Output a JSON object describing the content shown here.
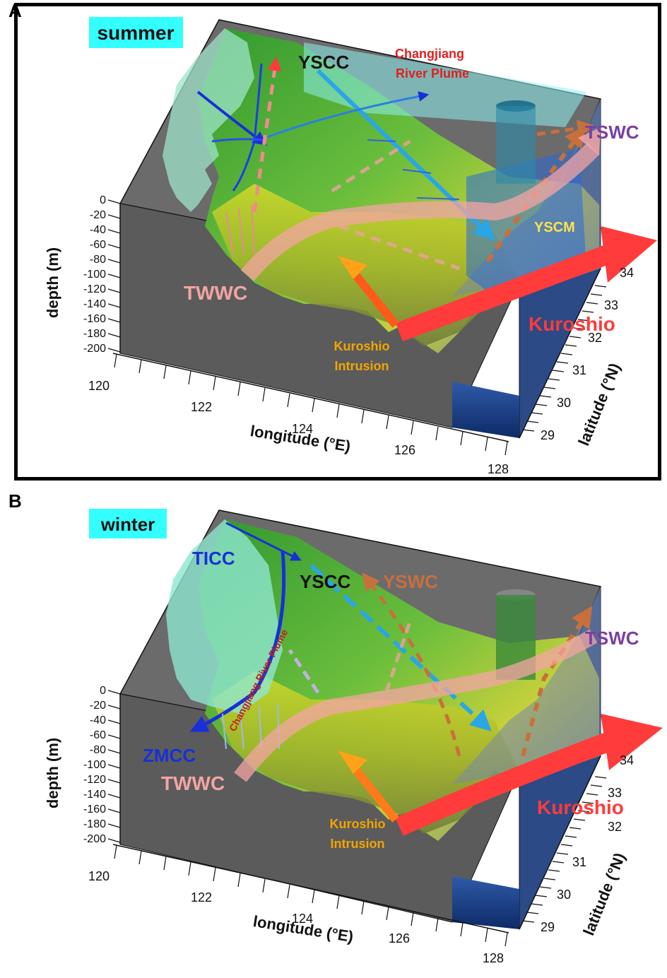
{
  "panels": [
    {
      "letter": "A",
      "season": "summer",
      "labels": {
        "yscc": "YSCC",
        "plume": [
          "Changjiang",
          "River Plume"
        ],
        "tswc": "TSWC",
        "yscm": "YSCM",
        "twwc": "TWWC",
        "kuroshio": "Kuroshio",
        "intrusion": [
          "Kuroshio",
          "Intrusion"
        ]
      }
    },
    {
      "letter": "B",
      "season": "winter",
      "labels": {
        "ticc": "TICC",
        "yscc": "YSCC",
        "yswc": "YSWC",
        "tswc": "TSWC",
        "zmcc": "ZMCC",
        "twwc": "TWWC",
        "plume": "Changjiang River Plume",
        "kuroshio": "Kuroshio",
        "intrusion": [
          "Kuroshio",
          "Intrusion"
        ]
      }
    }
  ],
  "axes": {
    "depth_label": "depth (m)",
    "depth_ticks": [
      "0",
      "-20",
      "-40",
      "-60",
      "-80",
      "-100",
      "-120",
      "-140",
      "-160",
      "-180",
      "-200"
    ],
    "longitude_label": "longitude (°E)",
    "longitude_ticks": [
      "120",
      "122",
      "124",
      "126",
      "128"
    ],
    "latitude_label": "latitude (°N)",
    "latitude_ticks": [
      "29",
      "30",
      "31",
      "32",
      "33",
      "34"
    ]
  },
  "colors": {
    "season_tag": "#33ffff",
    "kuroshio": "#ff3b3b",
    "twwc": "#f4a4a4",
    "tswc": "#7b3fa0",
    "yswc": "#c8703c",
    "yscm": "#ffe24a",
    "intrusion_label": "#f2a500",
    "coastal_current": "#1730d8",
    "plume_label_summer": "#e02020",
    "plume_label_winter": "#c02020"
  }
}
